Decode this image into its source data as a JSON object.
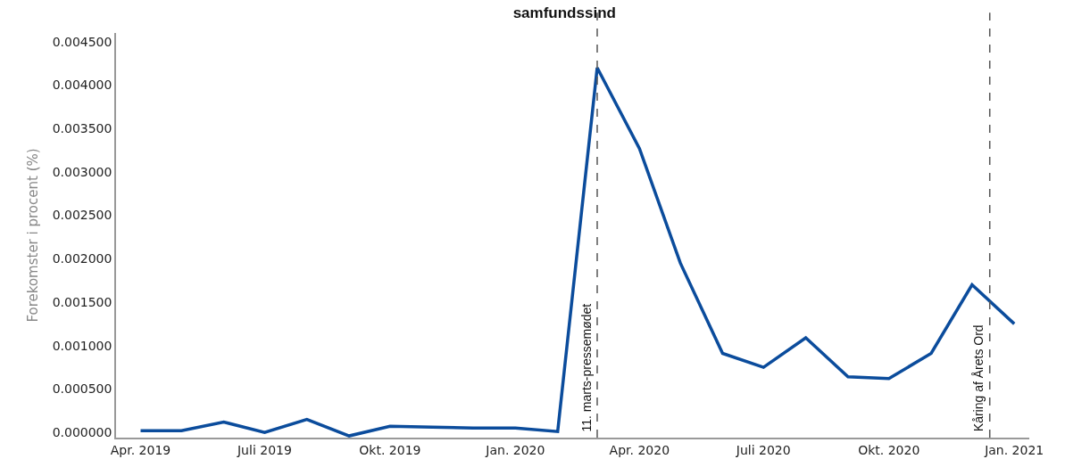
{
  "chart_data": {
    "type": "line",
    "title": "samfundssind",
    "ylabel": "Forekomster i procent (%)",
    "x": [
      "2019-04-01",
      "2019-05-01",
      "2019-06-01",
      "2019-07-01",
      "2019-08-01",
      "2019-09-01",
      "2019-10-01",
      "2019-11-01",
      "2019-12-01",
      "2020-01-01",
      "2020-02-01",
      "2020-03-01",
      "2020-04-01",
      "2020-05-01",
      "2020-06-01",
      "2020-07-01",
      "2020-08-01",
      "2020-09-01",
      "2020-10-01",
      "2020-11-01",
      "2020-12-01",
      "2021-01-01"
    ],
    "series": [
      {
        "color": "#0b4c9c",
        "values": [
          2e-05,
          2e-05,
          0.00012,
          0.0,
          0.00015,
          -4e-05,
          7e-05,
          6e-05,
          5e-05,
          5e-05,
          1e-05,
          0.0042,
          0.00327,
          0.00195,
          0.00091,
          0.00075,
          0.00109,
          0.00064,
          0.00062,
          0.00091,
          0.0017,
          0.00125
        ]
      }
    ],
    "xlim": [
      "2019-03-14",
      "2021-01-12"
    ],
    "xticks": [
      {
        "value": "2019-04-01",
        "label": "Apr. 2019"
      },
      {
        "value": "2019-07-01",
        "label": "Juli 2019"
      },
      {
        "value": "2019-10-01",
        "label": "Okt. 2019"
      },
      {
        "value": "2020-01-01",
        "label": "Jan. 2020"
      },
      {
        "value": "2020-04-01",
        "label": "Apr. 2020"
      },
      {
        "value": "2020-07-01",
        "label": "Juli 2020"
      },
      {
        "value": "2020-10-01",
        "label": "Okt. 2020"
      },
      {
        "value": "2021-01-01",
        "label": "Jan. 2021"
      }
    ],
    "ylim": [
      -6e-05,
      0.0046
    ],
    "yticks": [
      {
        "value": 0,
        "label": "0.000000"
      },
      {
        "value": 0.0005,
        "label": "0.000500"
      },
      {
        "value": 0.001,
        "label": "0.001000"
      },
      {
        "value": 0.0015,
        "label": "0.001500"
      },
      {
        "value": 0.002,
        "label": "0.002000"
      },
      {
        "value": 0.0025,
        "label": "0.002500"
      },
      {
        "value": 0.003,
        "label": "0.003000"
      },
      {
        "value": 0.0035,
        "label": "0.003500"
      },
      {
        "value": 0.004,
        "label": "0.004000"
      },
      {
        "value": 0.0045,
        "label": "0.004500"
      }
    ],
    "ref_lines": [
      {
        "axis": "x",
        "value": "2020-03-01",
        "label": "11. marts-pressemødet",
        "color": "#555555",
        "line_style": "dashed"
      },
      {
        "axis": "x",
        "value": "2020-12-14",
        "label": "Kåring af Årets Ord",
        "color": "#555555",
        "line_style": "dashed"
      }
    ],
    "grid": false,
    "marker": "none",
    "line_style": "solid"
  }
}
